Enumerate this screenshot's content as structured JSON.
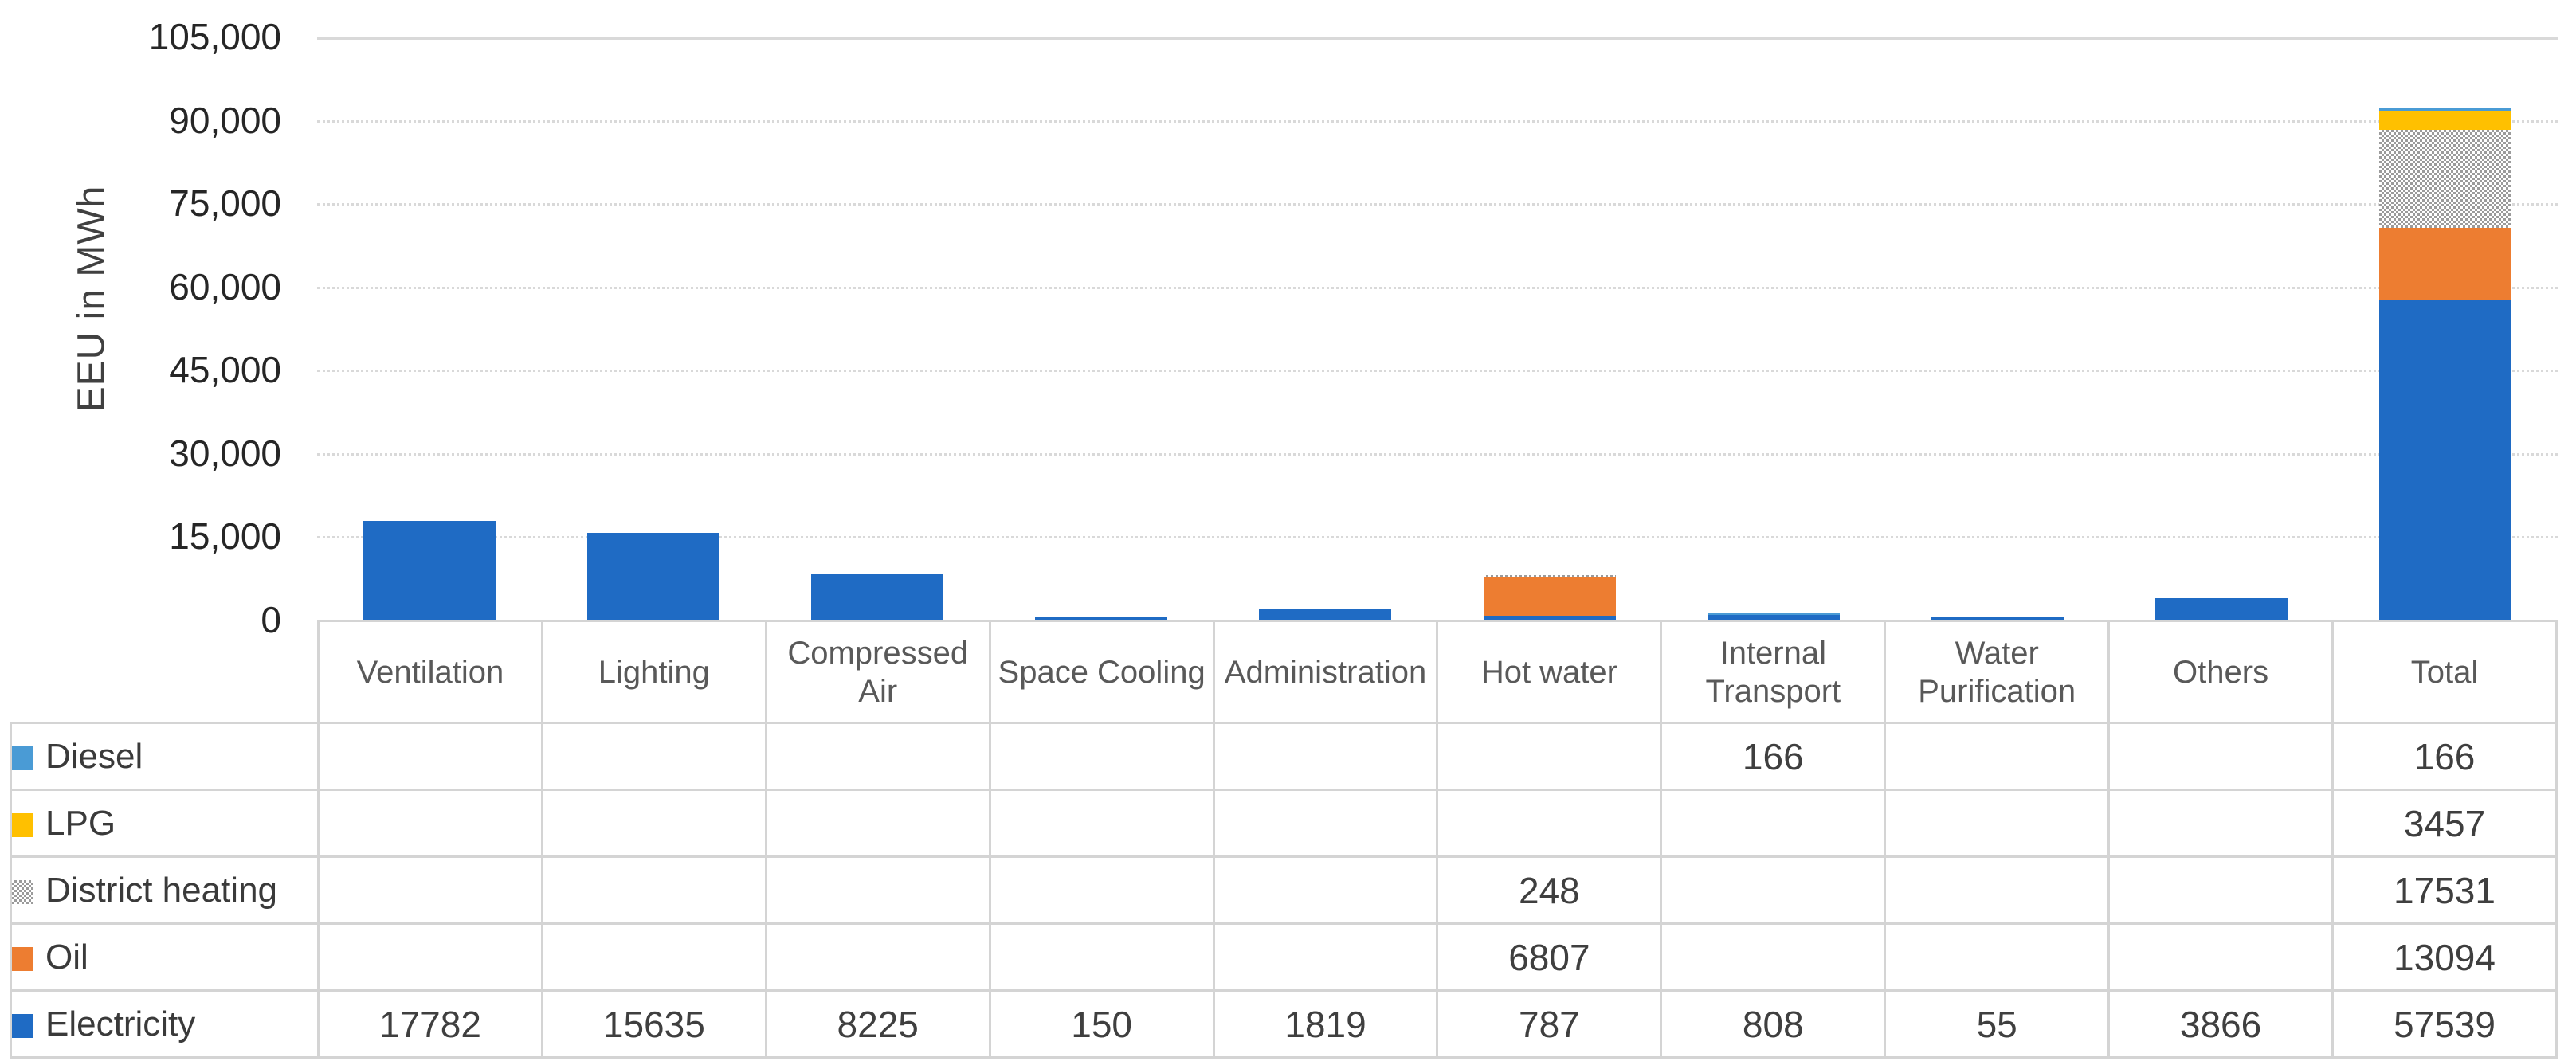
{
  "chart_data": {
    "type": "bar",
    "stacked": true,
    "orientation": "vertical",
    "title": "",
    "xlabel": "",
    "ylabel": "EEU in MWh",
    "ylim": [
      0,
      105000
    ],
    "ytick_step": 15000,
    "ytick_labels": [
      "0",
      "15,000",
      "30,000",
      "45,000",
      "60,000",
      "75,000",
      "90,000",
      "105,000"
    ],
    "grid": "horizontal-dotted-light-gray",
    "legend_position": "table-rows-left",
    "categories": [
      "Ventilation",
      "Lighting",
      "Compressed Air",
      "Space Cooling",
      "Administration",
      "Hot water",
      "Internal Transport",
      "Water Purification",
      "Others",
      "Total"
    ],
    "series": [
      {
        "name": "Electricity",
        "color": "#1F6BC4",
        "fill": "solid",
        "values": [
          17782,
          15635,
          8225,
          150,
          1819,
          787,
          808,
          55,
          3866,
          57539
        ]
      },
      {
        "name": "Oil",
        "color": "#ED7D31",
        "fill": "solid",
        "values": [
          0,
          0,
          0,
          0,
          0,
          6807,
          0,
          0,
          0,
          13094
        ]
      },
      {
        "name": "District heating",
        "color": "#9B9B9B",
        "fill": "checker",
        "values": [
          0,
          0,
          0,
          0,
          0,
          248,
          0,
          0,
          0,
          17531
        ]
      },
      {
        "name": "LPG",
        "color": "#FFC000",
        "fill": "solid",
        "values": [
          0,
          0,
          0,
          0,
          0,
          0,
          0,
          0,
          0,
          3457
        ]
      },
      {
        "name": "Diesel",
        "color": "#4A9BD5",
        "fill": "solid",
        "values": [
          0,
          0,
          0,
          0,
          0,
          0,
          166,
          0,
          0,
          166
        ]
      }
    ]
  },
  "table": {
    "corner_label": "",
    "rows": [
      {
        "label": "Diesel",
        "swatch": "#4A9BD5",
        "values": [
          "",
          "",
          "",
          "",
          "",
          "",
          "166",
          "",
          "",
          "166"
        ]
      },
      {
        "label": "LPG",
        "swatch": "#FFC000",
        "values": [
          "",
          "",
          "",
          "",
          "",
          "",
          "",
          "",
          "",
          "3457"
        ]
      },
      {
        "label": "District heating",
        "swatch": "checker-gray",
        "values": [
          "",
          "",
          "",
          "",
          "",
          "248",
          "",
          "",
          "",
          "17531"
        ]
      },
      {
        "label": "Oil",
        "swatch": "#ED7D31",
        "values": [
          "",
          "",
          "",
          "",
          "",
          "6807",
          "",
          "",
          "",
          "13094"
        ]
      },
      {
        "label": "Electricity",
        "swatch": "#1F6BC4",
        "values": [
          "17782",
          "15635",
          "8225",
          "150",
          "1819",
          "787",
          "808",
          "55",
          "3866",
          "57539"
        ]
      }
    ]
  },
  "colors": {
    "gridline": "#d9d9d9",
    "table_border": "#d4d4d4",
    "axis_text": "#262626",
    "header_text": "#595959"
  }
}
